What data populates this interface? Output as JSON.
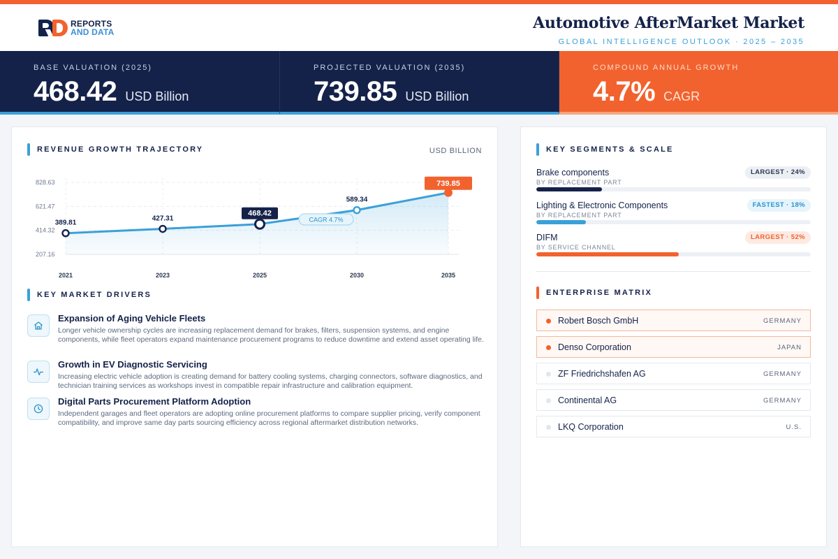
{
  "brand": {
    "line1": "REPORTS",
    "line2": "AND DATA"
  },
  "header": {
    "title": "Automotive AfterMarket Market",
    "subtitle": "GLOBAL INTELLIGENCE OUTLOOK  ·  2025 – 2035"
  },
  "kpis": [
    {
      "label": "BASE VALUATION (2025)",
      "value": "468.42",
      "unit": "USD Billion"
    },
    {
      "label": "PROJECTED VALUATION (2035)",
      "value": "739.85",
      "unit": "USD Billion"
    },
    {
      "label": "COMPOUND ANNUAL GROWTH",
      "value": "4.7%",
      "unit": "CAGR"
    }
  ],
  "revenue": {
    "section_title": "REVENUE GROWTH TRAJECTORY",
    "units_label": "USD BILLION",
    "cagr_badge": "CAGR 4.7%"
  },
  "chart_data": {
    "type": "line",
    "title": "REVENUE GROWTH TRAJECTORY",
    "ylabel": "USD BILLION",
    "x": [
      "2021",
      "2023",
      "2025",
      "2030",
      "2035"
    ],
    "values": [
      389.81,
      427.31,
      468.42,
      589.34,
      739.85
    ],
    "value_labels": [
      "389.81",
      "427.31",
      "468.42",
      "589.34",
      "739.85"
    ],
    "y_ticks": [
      "828.63",
      "621.47",
      "414.32",
      "207.16"
    ],
    "ylim": [
      207.16,
      828.63
    ],
    "highlight": {
      "base": "2025",
      "projected": "2035"
    },
    "annotation": "CAGR 4.7%",
    "grid": true,
    "colors": {
      "line": "#3aa0d8",
      "base": "#14224a",
      "projected": "#f2622e"
    }
  },
  "drivers": {
    "section_title": "KEY MARKET DRIVERS",
    "items": [
      {
        "icon": "home-icon",
        "title": "Expansion of Aging Vehicle Fleets",
        "description": "Longer vehicle ownership cycles are increasing replacement demand for brakes, filters, suspension systems, and engine components, while fleet operators expand maintenance procurement programs to reduce downtime and extend asset operating life."
      },
      {
        "icon": "pulse-icon",
        "title": "Growth in EV Diagnostic Servicing",
        "description": "Increasing electric vehicle adoption is creating demand for battery cooling systems, charging connectors, software diagnostics, and technician training services as workshops invest in compatible repair infrastructure and calibration equipment."
      },
      {
        "icon": "clock-icon",
        "title": "Digital Parts Procurement Platform Adoption",
        "description": "Independent garages and fleet operators are adopting online procurement platforms to compare supplier pricing, verify component compatibility, and improve same day parts sourcing efficiency across regional aftermarket distribution networks."
      }
    ]
  },
  "segments": {
    "section_title": "KEY SEGMENTS & SCALE",
    "items": [
      {
        "name": "Brake components",
        "category": "BY REPLACEMENT PART",
        "badge": "LARGEST · 24%",
        "share": 24,
        "color": "#14224a"
      },
      {
        "name": "Lighting & Electronic Components",
        "category": "BY REPLACEMENT PART",
        "badge": "FASTEST · 18%",
        "share": 18,
        "color": "#3aa0d8"
      },
      {
        "name": "DIFM",
        "category": "BY SERVICE CHANNEL",
        "badge": "LARGEST · 52%",
        "share": 52,
        "color": "#f2622e"
      }
    ]
  },
  "enterprise": {
    "section_title": "ENTERPRISE MATRIX",
    "items": [
      {
        "name": "Robert Bosch GmbH",
        "country": "GERMANY",
        "highlight": true
      },
      {
        "name": "Denso Corporation",
        "country": "JAPAN",
        "highlight": true
      },
      {
        "name": "ZF Friedrichshafen AG",
        "country": "GERMANY",
        "highlight": false
      },
      {
        "name": "Continental AG",
        "country": "GERMANY",
        "highlight": false
      },
      {
        "name": "LKQ Corporation",
        "country": "U.S.",
        "highlight": false
      }
    ]
  }
}
